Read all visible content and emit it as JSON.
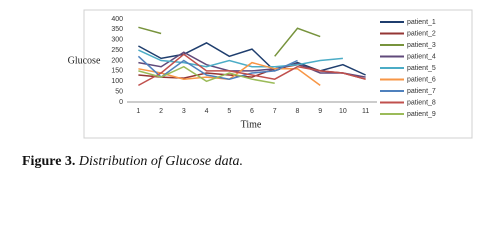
{
  "chart_data": {
    "type": "line",
    "y_label": "Glucose",
    "x_label": "Time",
    "categories": [
      "1",
      "2",
      "3",
      "4",
      "5",
      "6",
      "7",
      "8",
      "9",
      "10",
      "11"
    ],
    "ylim": [
      0,
      400
    ],
    "yticks": [
      0,
      50,
      100,
      150,
      200,
      250,
      300,
      350,
      400
    ],
    "grid": false,
    "legend": "right",
    "series": [
      {
        "name": "patient_1",
        "color": "#1f3e6e",
        "values": [
          270,
          210,
          230,
          285,
          220,
          255,
          150,
          190,
          150,
          180,
          130
        ]
      },
      {
        "name": "patient_2",
        "color": "#943634",
        "values": [
          130,
          120,
          115,
          140,
          130,
          120,
          160,
          180,
          150,
          140,
          110
        ]
      },
      {
        "name": "patient_3",
        "color": "#77933c",
        "values": [
          360,
          330,
          null,
          null,
          null,
          null,
          220,
          355,
          315,
          null,
          null
        ]
      },
      {
        "name": "patient_4",
        "color": "#604a7b",
        "values": [
          190,
          170,
          240,
          180,
          150,
          150,
          160,
          185,
          140,
          140,
          120
        ]
      },
      {
        "name": "patient_5",
        "color": "#4bacc6",
        "values": [
          250,
          200,
          190,
          170,
          200,
          170,
          170,
          180,
          200,
          210,
          null
        ]
      },
      {
        "name": "patient_6",
        "color": "#f79646",
        "values": [
          160,
          140,
          110,
          120,
          110,
          190,
          160,
          160,
          80,
          null,
          null
        ]
      },
      {
        "name": "patient_7",
        "color": "#4f81bd",
        "values": [
          220,
          120,
          200,
          130,
          110,
          140,
          150,
          200,
          null,
          null,
          null
        ]
      },
      {
        "name": "patient_8",
        "color": "#c0504d",
        "values": [
          80,
          140,
          230,
          150,
          150,
          130,
          110,
          170,
          150,
          140,
          110
        ]
      },
      {
        "name": "patient_9",
        "color": "#9bbb59",
        "values": [
          150,
          120,
          170,
          100,
          140,
          110,
          90,
          null,
          null,
          null,
          null
        ]
      }
    ]
  },
  "caption": {
    "label": "Figure 3.",
    "text": "Distribution of Glucose data."
  }
}
